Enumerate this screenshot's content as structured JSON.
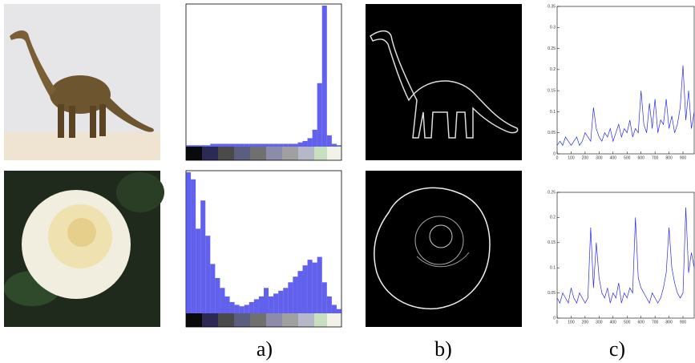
{
  "captions": [
    "a)",
    "b)",
    "c)"
  ],
  "chart_data": [
    {
      "type": "histogram",
      "color": "#3a3ae8",
      "bins": [
        0,
        1,
        2,
        3,
        4,
        5,
        6,
        7,
        8,
        9,
        10,
        11,
        12,
        13,
        14,
        15,
        16,
        17,
        18,
        19,
        20,
        21,
        22,
        23,
        24,
        25,
        26,
        27,
        28,
        29,
        30,
        31,
        32
      ],
      "values": [
        0.01,
        0.01,
        0.01,
        0.01,
        0.01,
        0.02,
        0.02,
        0.02,
        0.02,
        0.02,
        0.02,
        0.02,
        0.02,
        0.02,
        0.02,
        0.02,
        0.02,
        0.02,
        0.02,
        0.02,
        0.02,
        0.02,
        0.02,
        0.03,
        0.04,
        0.06,
        0.12,
        0.45,
        1.0,
        0.08,
        0.02,
        0.01
      ],
      "xlim": [
        0,
        32
      ],
      "ylim": [
        0,
        1
      ]
    },
    {
      "type": "histogram",
      "color": "#3a3ae8",
      "bins": [
        0,
        1,
        2,
        3,
        4,
        5,
        6,
        7,
        8,
        9,
        10,
        11,
        12,
        13,
        14,
        15,
        16,
        17,
        18,
        19,
        20,
        21,
        22,
        23,
        24,
        25,
        26,
        27,
        28,
        29,
        30,
        31,
        32
      ],
      "values": [
        1.0,
        0.95,
        0.6,
        0.8,
        0.55,
        0.35,
        0.25,
        0.18,
        0.12,
        0.08,
        0.06,
        0.05,
        0.06,
        0.08,
        0.1,
        0.12,
        0.18,
        0.12,
        0.14,
        0.16,
        0.18,
        0.22,
        0.26,
        0.3,
        0.34,
        0.38,
        0.36,
        0.4,
        0.22,
        0.12,
        0.06,
        0.03
      ],
      "xlim": [
        0,
        32
      ],
      "ylim": [
        0,
        1
      ]
    },
    {
      "type": "line",
      "color": "#2a2af0",
      "x": [
        0,
        20,
        40,
        60,
        80,
        100,
        120,
        140,
        160,
        180,
        200,
        220,
        240,
        260,
        280,
        300,
        320,
        340,
        360,
        380,
        400,
        420,
        440,
        460,
        480,
        500,
        520,
        540,
        560,
        580,
        600,
        620,
        640,
        660,
        680,
        700,
        720,
        740,
        760,
        780,
        800,
        820,
        840,
        860,
        880,
        900,
        920,
        940,
        960,
        980
      ],
      "values": [
        0.02,
        0.03,
        0.02,
        0.04,
        0.03,
        0.02,
        0.03,
        0.04,
        0.02,
        0.03,
        0.05,
        0.04,
        0.03,
        0.11,
        0.06,
        0.04,
        0.03,
        0.05,
        0.04,
        0.06,
        0.03,
        0.05,
        0.07,
        0.04,
        0.06,
        0.05,
        0.08,
        0.04,
        0.06,
        0.05,
        0.15,
        0.07,
        0.05,
        0.12,
        0.06,
        0.13,
        0.05,
        0.08,
        0.07,
        0.13,
        0.06,
        0.09,
        0.05,
        0.07,
        0.11,
        0.21,
        0.08,
        0.15,
        0.06,
        0.1
      ],
      "xlim": [
        0,
        980
      ],
      "ylim": [
        0,
        0.35
      ],
      "xticks": [
        0,
        100,
        200,
        300,
        400,
        500,
        600,
        700,
        800,
        900
      ],
      "yticks": [
        0,
        0.05,
        0.1,
        0.15,
        0.2,
        0.25,
        0.3,
        0.35
      ]
    },
    {
      "type": "line",
      "color": "#2a2af0",
      "x": [
        0,
        20,
        40,
        60,
        80,
        100,
        120,
        140,
        160,
        180,
        200,
        220,
        240,
        260,
        280,
        300,
        320,
        340,
        360,
        380,
        400,
        420,
        440,
        460,
        480,
        500,
        520,
        540,
        560,
        580,
        600,
        620,
        640,
        660,
        680,
        700,
        720,
        740,
        760,
        780,
        800,
        820,
        840,
        860,
        880,
        900,
        920,
        940,
        960,
        980
      ],
      "values": [
        0.04,
        0.03,
        0.05,
        0.04,
        0.03,
        0.06,
        0.04,
        0.03,
        0.05,
        0.04,
        0.03,
        0.04,
        0.18,
        0.06,
        0.15,
        0.08,
        0.05,
        0.04,
        0.06,
        0.03,
        0.05,
        0.04,
        0.07,
        0.03,
        0.05,
        0.04,
        0.06,
        0.05,
        0.2,
        0.08,
        0.06,
        0.05,
        0.04,
        0.03,
        0.05,
        0.04,
        0.03,
        0.04,
        0.06,
        0.09,
        0.18,
        0.1,
        0.07,
        0.05,
        0.04,
        0.05,
        0.22,
        0.09,
        0.13,
        0.1
      ],
      "xlim": [
        0,
        980
      ],
      "ylim": [
        0,
        0.25
      ],
      "xticks": [
        0,
        100,
        200,
        300,
        400,
        500,
        600,
        700,
        800,
        900
      ],
      "yticks": [
        0,
        0.05,
        0.1,
        0.15,
        0.2,
        0.25
      ]
    }
  ]
}
